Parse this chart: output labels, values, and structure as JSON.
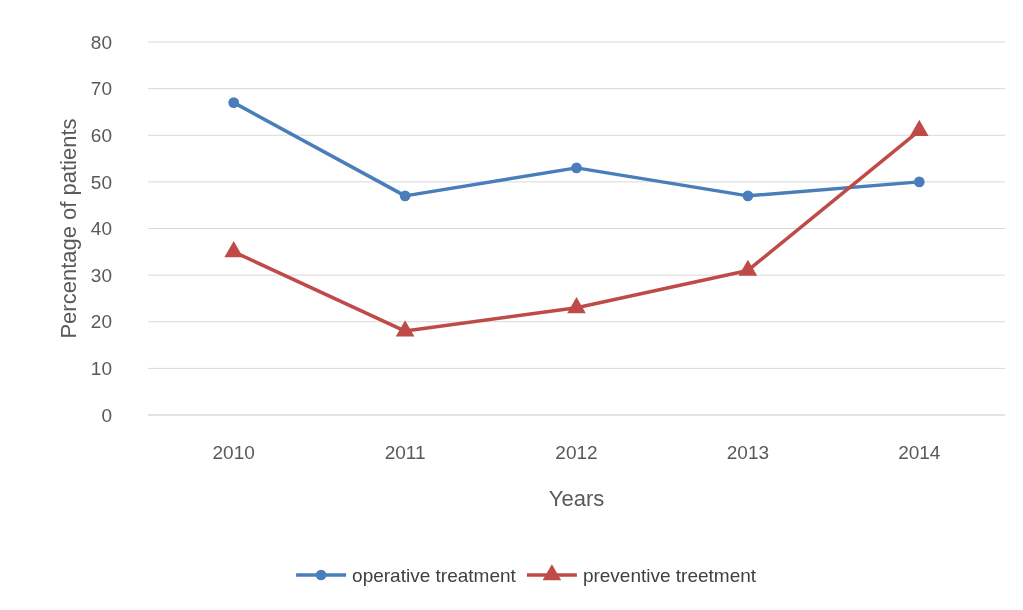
{
  "chart_data": {
    "type": "line",
    "xlabel": "Years",
    "ylabel": "Percentage of patients",
    "categories": [
      "2010",
      "2011",
      "2012",
      "2013",
      "2014"
    ],
    "series": [
      {
        "name": "operative treatment",
        "color": "#4a7ebb",
        "marker": "circle",
        "values": [
          67,
          47,
          53,
          47,
          50
        ]
      },
      {
        "name": "preventive treetment",
        "color": "#be4b48",
        "marker": "triangle",
        "values": [
          35,
          18,
          23,
          31,
          61
        ]
      }
    ],
    "ylim": [
      0,
      80
    ],
    "yticks": [
      0,
      10,
      20,
      30,
      40,
      50,
      60,
      70,
      80
    ],
    "grid": "y",
    "legend": "bottom"
  }
}
